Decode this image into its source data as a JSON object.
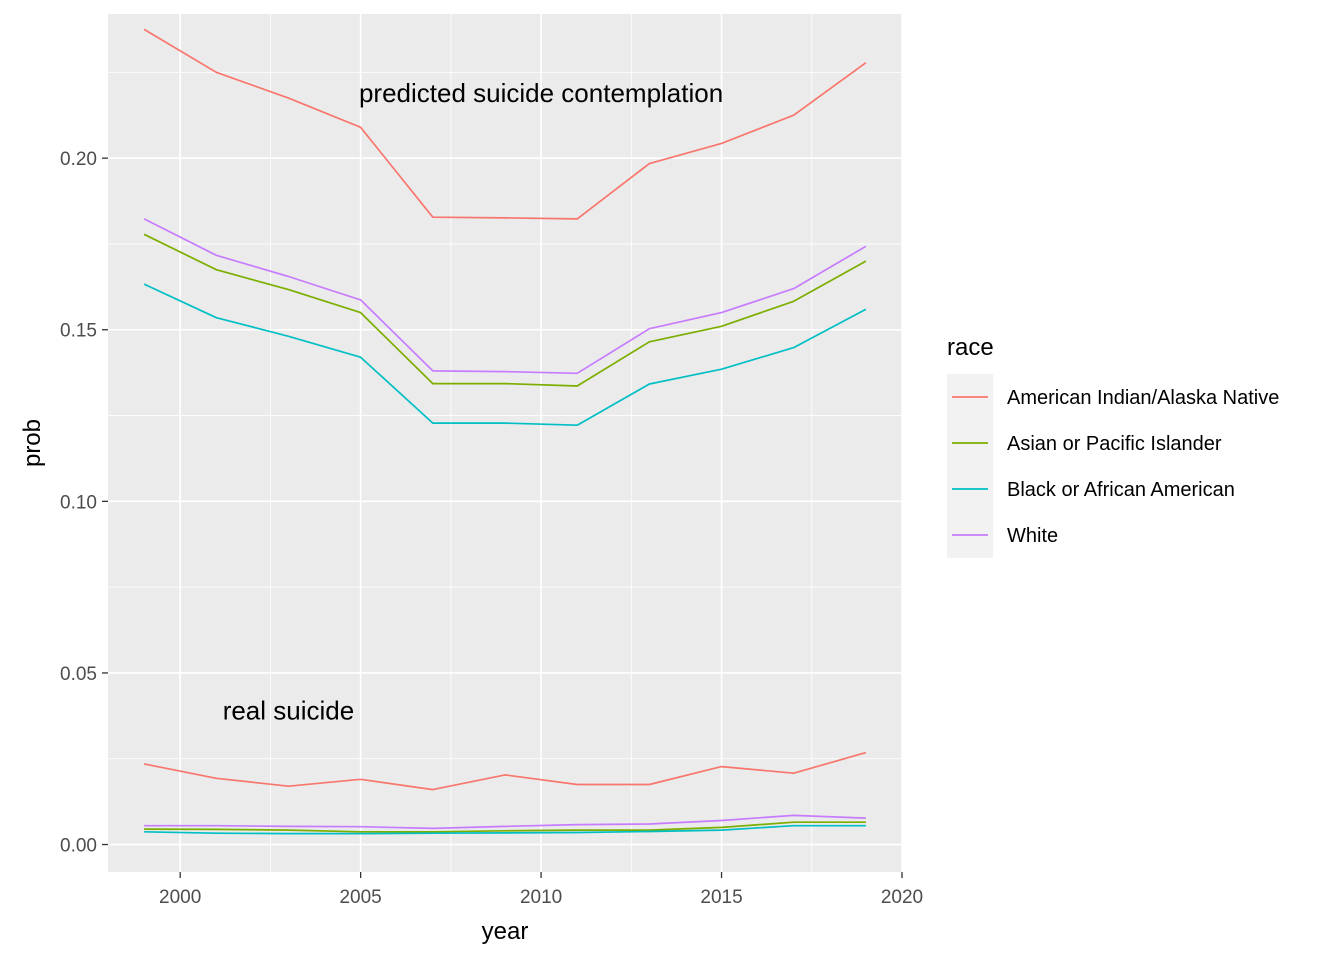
{
  "chart_data": {
    "type": "line",
    "xlabel": "year",
    "ylabel": "prob",
    "xlim": [
      1998,
      2020
    ],
    "ylim": [
      -0.008,
      0.242
    ],
    "x_ticks": [
      2000,
      2005,
      2010,
      2015,
      2020
    ],
    "y_ticks": [
      0.0,
      0.05,
      0.1,
      0.15,
      0.2
    ],
    "x_tick_labels": [
      "2000",
      "2005",
      "2010",
      "2015",
      "2020"
    ],
    "y_tick_labels": [
      "0.00",
      "0.05",
      "0.10",
      "0.15",
      "0.20"
    ],
    "grid": true,
    "legend": {
      "title": "race",
      "position": "right"
    },
    "annotations": [
      {
        "text": "predicted suicide contemplation",
        "x": 2010,
        "y": 0.219
      },
      {
        "text": "real suicide",
        "x": 2003,
        "y": 0.039
      }
    ],
    "x": [
      1999,
      2001,
      2003,
      2005,
      2007,
      2009,
      2011,
      2013,
      2015,
      2017,
      2019
    ],
    "series": [
      {
        "name": "American Indian/Alaska Native",
        "group": "predicted",
        "color": "#F8766D",
        "values": [
          0.2375,
          0.225,
          0.2175,
          0.209,
          0.1828,
          0.1826,
          0.1823,
          0.1984,
          0.2043,
          0.2125,
          0.2278
        ]
      },
      {
        "name": "Asian or Pacific Islander",
        "group": "predicted",
        "color": "#7CAE00",
        "values": [
          0.1778,
          0.1675,
          0.1617,
          0.155,
          0.1343,
          0.1343,
          0.1336,
          0.1465,
          0.151,
          0.1583,
          0.17
        ]
      },
      {
        "name": "Black or African American",
        "group": "predicted",
        "color": "#00BFC4",
        "values": [
          0.1633,
          0.1535,
          0.1481,
          0.142,
          0.1228,
          0.1228,
          0.1222,
          0.1342,
          0.1385,
          0.1448,
          0.156
        ]
      },
      {
        "name": "White",
        "group": "predicted",
        "color": "#C77CFF",
        "values": [
          0.1823,
          0.1717,
          0.1655,
          0.1587,
          0.138,
          0.1378,
          0.1373,
          0.1503,
          0.155,
          0.162,
          0.1743
        ]
      },
      {
        "name": "American Indian/Alaska Native",
        "group": "real",
        "color": "#F8766D",
        "values": [
          0.0235,
          0.0193,
          0.017,
          0.019,
          0.016,
          0.0203,
          0.0175,
          0.0175,
          0.0227,
          0.0208,
          0.0268
        ]
      },
      {
        "name": "Asian or Pacific Islander",
        "group": "real",
        "color": "#7CAE00",
        "values": [
          0.0045,
          0.0044,
          0.0042,
          0.0037,
          0.0037,
          0.004,
          0.0042,
          0.0042,
          0.005,
          0.0065,
          0.0065
        ]
      },
      {
        "name": "Black or African American",
        "group": "real",
        "color": "#00BFC4",
        "values": [
          0.0037,
          0.0033,
          0.0032,
          0.0032,
          0.0033,
          0.0034,
          0.0035,
          0.0038,
          0.0042,
          0.0055,
          0.0055
        ]
      },
      {
        "name": "White",
        "group": "real",
        "color": "#C77CFF",
        "values": [
          0.0055,
          0.0055,
          0.0053,
          0.0052,
          0.0047,
          0.0053,
          0.0058,
          0.006,
          0.007,
          0.0085,
          0.0077
        ]
      }
    ]
  }
}
